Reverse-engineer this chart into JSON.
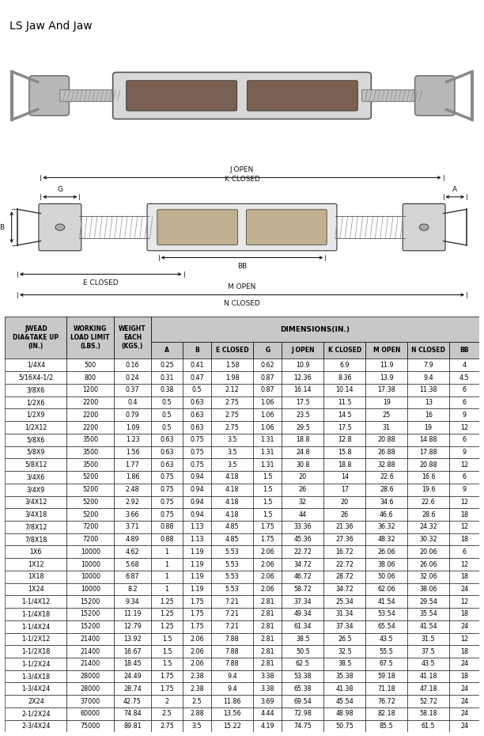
{
  "title": "LS Jaw And Jaw",
  "title_fontsize": 10,
  "col_labels": [
    "JWEAD\nDIA&TAKE UP\n(IN.)",
    "WORKING\nLOAD LIMIT\n(LBS.)",
    "WEIGHT\nEACH\n(KGS.)",
    "A",
    "B",
    "E CLOSED",
    "G",
    "J OPEN",
    "K CLOSED",
    "M OPEN",
    "N CLOSED",
    "BB"
  ],
  "dim_header": "DIMENSIONS(IN.)",
  "sub_labels": [
    "A",
    "B",
    "E CLOSED",
    "G",
    "J OPEN",
    "K CLOSED",
    "M OPEN",
    "N CLOSED",
    "BB"
  ],
  "rows": [
    [
      "1/4X4",
      "500",
      "0.16",
      "0.25",
      "0.41",
      "1.58",
      "0.62",
      "10.9",
      "6.9",
      "11.9",
      "7.9",
      "4"
    ],
    [
      "5/16X4-1/2",
      "800",
      "0.24",
      "0.31",
      "0.47",
      "1.98",
      "0.87",
      "12.36",
      "8.36",
      "13.9",
      "9.4",
      "4.5"
    ],
    [
      "3/8X6",
      "1200",
      "0.37",
      "0.38",
      "0.5",
      "2.12",
      "0.87",
      "16.14",
      "10.14",
      "17.38",
      "11.38",
      "6"
    ],
    [
      "1/2X6",
      "2200",
      "0.4",
      "0.5",
      "0.63",
      "2.75",
      "1.06",
      "17.5",
      "11.5",
      "19",
      "13",
      "6"
    ],
    [
      "1/2X9",
      "2200",
      "0.79",
      "0.5",
      "0.63",
      "2.75",
      "1.06",
      "23.5",
      "14.5",
      "25",
      "16",
      "9"
    ],
    [
      "1/2X12",
      "2200",
      "1.09",
      "0.5",
      "0.63",
      "2.75",
      "1.06",
      "29.5",
      "17.5",
      "31",
      "19",
      "12"
    ],
    [
      "5/8X6",
      "3500",
      "1.23",
      "0.63",
      "0.75",
      "3.5",
      "1.31",
      "18.8",
      "12.8",
      "20.88",
      "14.88",
      "6"
    ],
    [
      "5/8X9",
      "3500",
      "1.56",
      "0.63",
      "0.75",
      "3.5",
      "1.31",
      "24.8",
      "15.8",
      "26.88",
      "17.88",
      "9"
    ],
    [
      "5/8X12",
      "3500",
      "1.77",
      "0.63",
      "0.75",
      "3.5",
      "1.31",
      "30.8",
      "18.8",
      "32.88",
      "20.88",
      "12"
    ],
    [
      "3/4X6",
      "5200",
      "1.86",
      "0.75",
      "0.94",
      "4.18",
      "1.5",
      "20",
      "14",
      "22.6",
      "16.6",
      "6"
    ],
    [
      "3/4X9",
      "5200",
      "2.48",
      "0.75",
      "0.94",
      "4.18",
      "1.5",
      "26",
      "17",
      "28.6",
      "19.6",
      "9"
    ],
    [
      "3/4X12",
      "5200",
      "2.92",
      "0.75",
      "0.94",
      "4.18",
      "1.5",
      "32",
      "20",
      "34.6",
      "22.6",
      "12"
    ],
    [
      "3/4X18",
      "5200",
      "3.66",
      "0.75",
      "0.94",
      "4.18",
      "1.5",
      "44",
      "26",
      "46.6",
      "28.6",
      "18"
    ],
    [
      "7/8X12",
      "7200",
      "3.71",
      "0.88",
      "1.13",
      "4.85",
      "1.75",
      "33.36",
      "21.36",
      "36.32",
      "24.32",
      "12"
    ],
    [
      "7/8X18",
      "7200",
      "4.89",
      "0.88",
      "1.13",
      "4.85",
      "1.75",
      "45.36",
      "27.36",
      "48.32",
      "30.32",
      "18"
    ],
    [
      "1X6",
      "10000",
      "4.62",
      "1",
      "1.19",
      "5.53",
      "2.06",
      "22.72",
      "16.72",
      "26.06",
      "20.06",
      "6"
    ],
    [
      "1X12",
      "10000",
      "5.68",
      "1",
      "1.19",
      "5.53",
      "2.06",
      "34.72",
      "22.72",
      "38.06",
      "26.06",
      "12"
    ],
    [
      "1X18",
      "10000",
      "6.87",
      "1",
      "1.19",
      "5.53",
      "2.06",
      "46.72",
      "28.72",
      "50.06",
      "32.06",
      "18"
    ],
    [
      "1X24",
      "10000",
      "8.2",
      "1",
      "1.19",
      "5.53",
      "2.06",
      "58.72",
      "34.72",
      "62.06",
      "38.06",
      "24"
    ],
    [
      "1-1/4X12",
      "15200",
      "9.34",
      "1.25",
      "1.75",
      "7.21",
      "2.81",
      "37.34",
      "25.34",
      "41.54",
      "29.54",
      "12"
    ],
    [
      "1-1/4X18",
      "15200",
      "11.19",
      "1.25",
      "1.75",
      "7.21",
      "2.81",
      "49.34",
      "31.34",
      "53.54",
      "35.54",
      "18"
    ],
    [
      "1-1/4X24",
      "15200",
      "12.79",
      "1.25",
      "1.75",
      "7.21",
      "2.81",
      "61.34",
      "37.34",
      "65.54",
      "41.54",
      "24"
    ],
    [
      "1-1/2X12",
      "21400",
      "13.92",
      "1.5",
      "2.06",
      "7.88",
      "2.81",
      "38.5",
      "26.5",
      "43.5",
      "31.5",
      "12"
    ],
    [
      "1-1/2X18",
      "21400",
      "16.67",
      "1.5",
      "2.06",
      "7.88",
      "2.81",
      "50.5",
      "32.5",
      "55.5",
      "37.5",
      "18"
    ],
    [
      "1-1/2X24",
      "21400",
      "18.45",
      "1.5",
      "2.06",
      "7.88",
      "2.81",
      "62.5",
      "38.5",
      "67.5",
      "43.5",
      "24"
    ],
    [
      "1-3/4X18",
      "28000",
      "24.49",
      "1.75",
      "2.38",
      "9.4",
      "3.38",
      "53.38",
      "35.38",
      "59.18",
      "41.18",
      "18"
    ],
    [
      "1-3/4X24",
      "28000",
      "28.74",
      "1.75",
      "2.38",
      "9.4",
      "3.38",
      "65.38",
      "41.38",
      "71.18",
      "47.18",
      "24"
    ],
    [
      "2X24",
      "37000",
      "42.75",
      "2",
      "2.5",
      "11.86",
      "3.69",
      "69.54",
      "45.54",
      "76.72",
      "52.72",
      "24"
    ],
    [
      "2-1/2X24",
      "60000",
      "74.84",
      "2.5",
      "2.88",
      "13.56",
      "4.44",
      "72.98",
      "48.98",
      "82.18",
      "58.18",
      "24"
    ],
    [
      "2-3/4X24",
      "75000",
      "89.81",
      "2.75",
      "3.5",
      "15.22",
      "4.19",
      "74.75",
      "50.75",
      "85.5",
      "61.5",
      "24"
    ]
  ],
  "bg_color": "#ffffff",
  "header_bg": "#c8c8c8",
  "text_color": "#000000"
}
